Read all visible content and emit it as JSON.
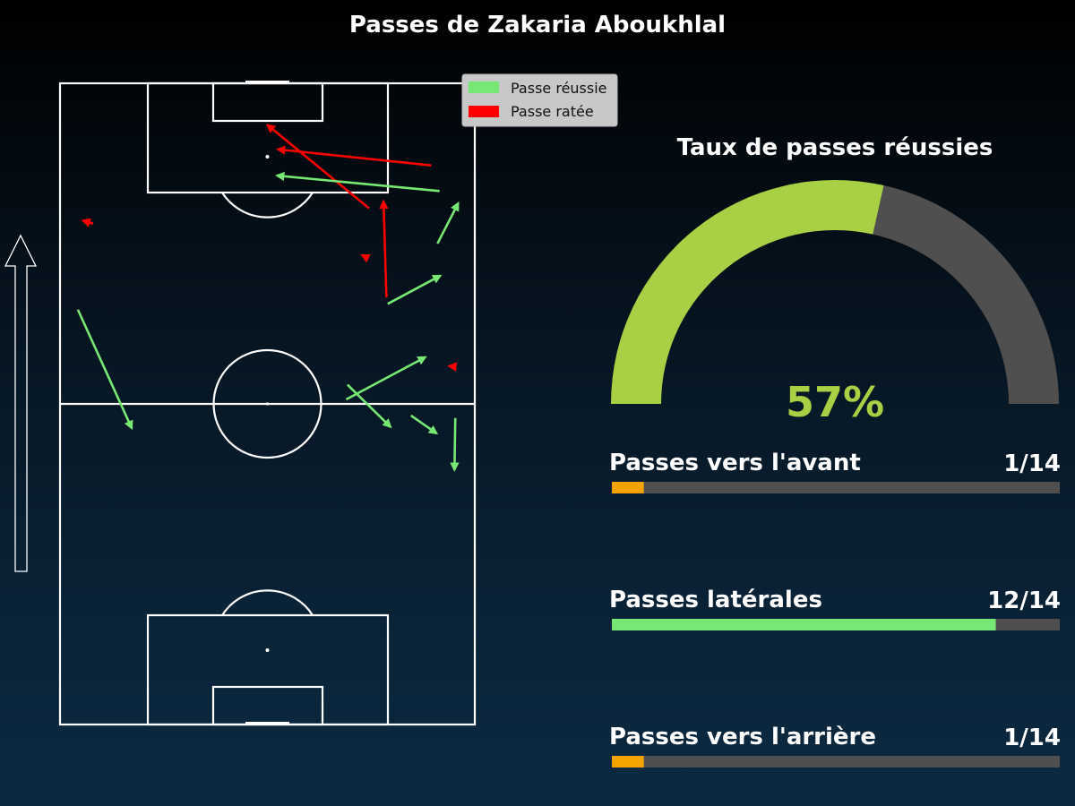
{
  "title": "Passes de Zakaria Aboukhlal",
  "legend": {
    "success_label": "Passe réussie",
    "fail_label": "Passe ratée"
  },
  "colors": {
    "success": "#77e874",
    "fail": "#ff0000",
    "gauge_fill": "#a8d045",
    "gauge_track": "#4f4f4f",
    "bar_track": "#4f4f4f",
    "bar_small": "#f4a300",
    "bar_lateral": "#77e874",
    "pitch_lines": "#ffffff",
    "legend_bg": "#c8c8c8"
  },
  "chart_data": [
    {
      "type": "pass_map",
      "pitch": {
        "x_range": [
          0,
          100
        ],
        "y_range": [
          0,
          100
        ],
        "attack_direction": "up"
      },
      "passes": [
        {
          "outcome": "fail",
          "start": [
            74.5,
            80.5
          ],
          "end": [
            50.0,
            93.5
          ]
        },
        {
          "outcome": "fail",
          "start": [
            89.5,
            87.2
          ],
          "end": [
            52.5,
            89.7
          ]
        },
        {
          "outcome": "fail",
          "start": [
            78.7,
            66.6
          ],
          "end": [
            78.0,
            81.6
          ]
        },
        {
          "outcome": "fail",
          "start": [
            8.0,
            78.1
          ],
          "end": [
            5.5,
            78.6
          ]
        },
        {
          "outcome": "fail",
          "start": [
            74.3,
            72.7
          ],
          "end": [
            72.8,
            73.2
          ]
        },
        {
          "outcome": "fail",
          "start": [
            95.5,
            55.8
          ],
          "end": [
            93.8,
            55.9
          ]
        },
        {
          "outcome": "success",
          "start": [
            91.5,
            83.2
          ],
          "end": [
            52.3,
            85.6
          ]
        },
        {
          "outcome": "success",
          "start": [
            91.0,
            75.0
          ],
          "end": [
            96.0,
            81.3
          ]
        },
        {
          "outcome": "success",
          "start": [
            79.0,
            65.6
          ],
          "end": [
            91.7,
            70.0
          ]
        },
        {
          "outcome": "success",
          "start": [
            4.3,
            64.7
          ],
          "end": [
            17.3,
            46.2
          ]
        },
        {
          "outcome": "success",
          "start": [
            69.0,
            50.7
          ],
          "end": [
            88.1,
            57.3
          ]
        },
        {
          "outcome": "success",
          "start": [
            69.3,
            53.0
          ],
          "end": [
            79.7,
            46.4
          ]
        },
        {
          "outcome": "success",
          "start": [
            84.6,
            48.2
          ],
          "end": [
            90.8,
            45.4
          ]
        },
        {
          "outcome": "success",
          "start": [
            95.3,
            47.8
          ],
          "end": [
            95.1,
            39.7
          ]
        }
      ]
    },
    {
      "type": "gauge",
      "title": "Taux de passes réussies",
      "value": 57,
      "range": [
        0,
        100
      ],
      "label": "57%"
    },
    {
      "type": "bar",
      "orientation": "horizontal",
      "categories": [
        "Passes vers l'avant",
        "Passes latérales",
        "Passes vers l'arrière"
      ],
      "values": [
        1,
        12,
        1
      ],
      "total": 14,
      "labels": [
        "1/14",
        "12/14",
        "1/14"
      ]
    }
  ]
}
